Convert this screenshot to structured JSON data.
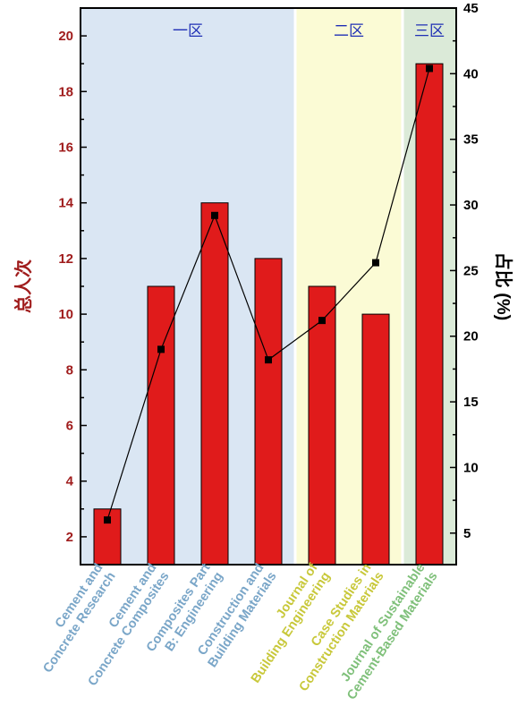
{
  "chart_data": {
    "type": "bar+line",
    "categories": [
      [
        "Cement and",
        "Concrete Research"
      ],
      [
        "Cement and",
        "Concrete Composites"
      ],
      [
        "Composites Part",
        "B: Engineering"
      ],
      [
        "Construction and",
        "Building Materials"
      ],
      [
        "Journal of",
        "Building Engineering"
      ],
      [
        "Case Studies in",
        "Construction Materials"
      ],
      [
        "Journal of Sustainable",
        "Cement-Based Materials"
      ]
    ],
    "category_colors": [
      "#7aa6c8",
      "#7aa6c8",
      "#7aa6c8",
      "#7aa6c8",
      "#c8c83a",
      "#c8c83a",
      "#7fc07a"
    ],
    "series": [
      {
        "axis": "left",
        "kind": "bar",
        "color": "#e01b1b",
        "values": [
          3,
          11,
          14,
          12,
          11,
          10,
          19
        ]
      },
      {
        "axis": "right",
        "kind": "line",
        "color": "#000000",
        "values": [
          6.0,
          19.0,
          29.2,
          18.2,
          21.2,
          25.6,
          40.4
        ]
      }
    ],
    "ylabel": "总人次",
    "ylabel_color": "#a01d1d",
    "ylim": [
      1,
      21
    ],
    "yticks": [
      2,
      4,
      6,
      8,
      10,
      12,
      14,
      16,
      18,
      20
    ],
    "y2label": "占比 (%)",
    "y2lim": [
      2.6,
      45
    ],
    "y2ticks": [
      5,
      10,
      15,
      20,
      25,
      30,
      35,
      40,
      45
    ],
    "zones": [
      {
        "label": "一区",
        "from": 0,
        "to": 4,
        "bg": "#dae6f3",
        "label_color": "#1f2fb5"
      },
      {
        "label": "二区",
        "from": 4,
        "to": 6,
        "bg": "#fbfbd5",
        "label_color": "#1f2fb5"
      },
      {
        "label": "三区",
        "from": 6,
        "to": 7,
        "bg": "#dbead8",
        "label_color": "#1f2fb5"
      }
    ],
    "grid": false
  }
}
